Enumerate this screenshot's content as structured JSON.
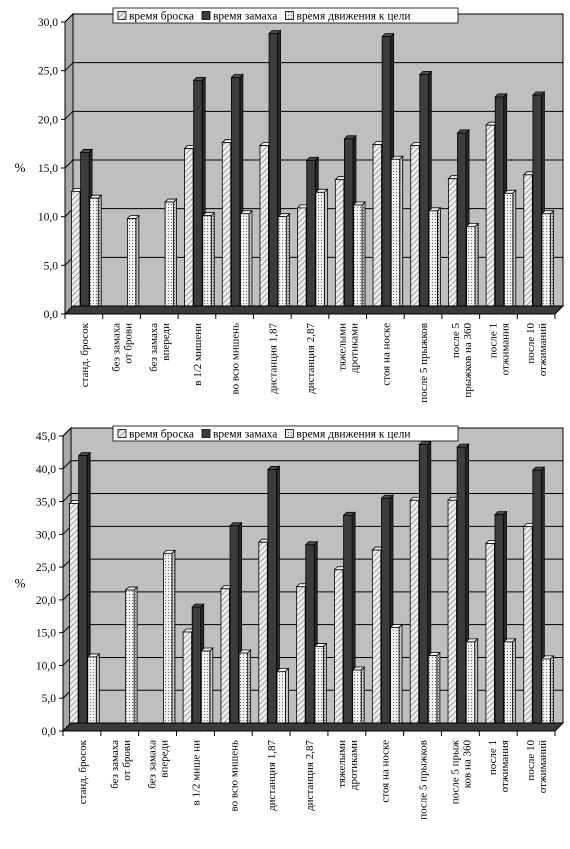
{
  "colors": {
    "plot_background": "#bfbfbf",
    "gridline": "#000000",
    "floor": "#3a3a3a",
    "series_1": "hatched-light-grey",
    "series_2": "#3c3c3c",
    "series_3": "dotted-light-grey"
  },
  "chart_data": [
    {
      "type": "bar",
      "title": "",
      "xlabel": "",
      "ylabel": "%",
      "ylim": [
        0,
        30
      ],
      "ytick_step": 5,
      "yticks": [
        "0,0",
        "5,0",
        "10,0",
        "15,0",
        "20,0",
        "25,0",
        "30,0"
      ],
      "grid": true,
      "legend_position": "top",
      "categories": [
        "станд. бросок",
        "без замаха от брови",
        "без замаха впереди",
        "в 1/2 мишени",
        "во всю мишень",
        "дистанция 1,87",
        "дистанция 2,87",
        "тяжелыми дротиками",
        "стоя на носке",
        "после 5 прыжков",
        "после 5 прыжков на 360",
        "после 1 отжимания",
        "после 10 отжиманий"
      ],
      "series": [
        {
          "name": "время броска",
          "values": [
            12.6,
            null,
            null,
            17.0,
            17.6,
            17.3,
            10.9,
            13.8,
            17.4,
            17.3,
            13.9,
            19.4,
            14.3
          ]
        },
        {
          "name": "время замаха",
          "values": [
            16.6,
            null,
            null,
            24.0,
            24.3,
            28.8,
            15.8,
            18.0,
            28.5,
            24.6,
            18.6,
            22.3,
            22.5
          ]
        },
        {
          "name": "время движения к цели",
          "values": [
            11.9,
            9.8,
            11.5,
            10.1,
            10.3,
            10.0,
            12.5,
            11.2,
            15.9,
            10.6,
            9.0,
            12.4,
            10.3
          ]
        }
      ]
    },
    {
      "type": "bar",
      "title": "",
      "xlabel": "",
      "ylabel": "%",
      "ylim": [
        0,
        45
      ],
      "ytick_step": 5,
      "yticks": [
        "0,0",
        "5,0",
        "10,0",
        "15,0",
        "20,0",
        "25,0",
        "30,0",
        "35,0",
        "40,0",
        "45,0"
      ],
      "grid": true,
      "legend_position": "top",
      "categories": [
        "станд. бросок",
        "без замаха от брови",
        "без замаха впереди",
        "в 1/2 мише ни",
        "во всю мишень",
        "дистанция 1,87",
        "дистанция 2,87",
        "тяжелыми дротиками",
        "стоя на носке",
        "после 5 прыжков",
        "после 5 прыж ков на 360",
        "после 1 отжимания",
        "после 10 отжиманий"
      ],
      "series": [
        {
          "name": "время броска",
          "values": [
            34.7,
            null,
            null,
            15.1,
            21.7,
            28.8,
            22.0,
            24.6,
            27.6,
            35.2,
            35.2,
            28.6,
            31.2
          ]
        },
        {
          "name": "время замаха",
          "values": [
            42.0,
            null,
            null,
            18.9,
            31.3,
            39.9,
            28.4,
            32.9,
            35.5,
            43.7,
            43.3,
            33.0,
            39.8
          ]
        },
        {
          "name": "время движения к цели",
          "values": [
            11.3,
            21.5,
            27.1,
            12.2,
            11.9,
            9.1,
            12.9,
            9.3,
            15.8,
            11.5,
            13.6,
            13.6,
            11.0
          ]
        }
      ]
    }
  ]
}
